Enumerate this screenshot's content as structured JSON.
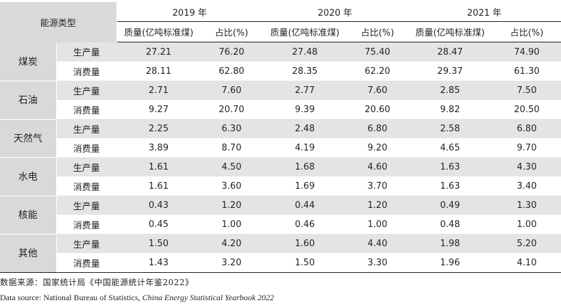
{
  "header": {
    "type_label": "能源类型",
    "years": [
      "2019 年",
      "2020 年",
      "2021 年"
    ],
    "quantity_label": "质量(亿吨标准煤)",
    "share_label": "占比(%)"
  },
  "rows": [
    {
      "type": "煤炭",
      "measures": [
        {
          "label": "生产量",
          "values": [
            "27.21",
            "76.20",
            "27.48",
            "75.40",
            "28.47",
            "74.90"
          ]
        },
        {
          "label": "消费量",
          "values": [
            "28.11",
            "62.80",
            "28.35",
            "62.20",
            "29.37",
            "61.30"
          ]
        }
      ]
    },
    {
      "type": "石油",
      "measures": [
        {
          "label": "生产量",
          "values": [
            "2.71",
            "7.60",
            "2.77",
            "7.60",
            "2.85",
            "7.50"
          ]
        },
        {
          "label": "消费量",
          "values": [
            "9.27",
            "20.70",
            "9.39",
            "20.60",
            "9.82",
            "20.50"
          ]
        }
      ]
    },
    {
      "type": "天然气",
      "measures": [
        {
          "label": "生产量",
          "values": [
            "2.25",
            "6.30",
            "2.48",
            "6.80",
            "2.58",
            "6.80"
          ]
        },
        {
          "label": "消费量",
          "values": [
            "3.89",
            "8.70",
            "4.19",
            "9.20",
            "4.65",
            "9.70"
          ]
        }
      ]
    },
    {
      "type": "水电",
      "measures": [
        {
          "label": "生产量",
          "values": [
            "1.61",
            "4.50",
            "1.68",
            "4.60",
            "1.63",
            "4.30"
          ]
        },
        {
          "label": "消费量",
          "values": [
            "1.61",
            "3.60",
            "1.69",
            "3.70",
            "1.63",
            "3.40"
          ]
        }
      ]
    },
    {
      "type": "核能",
      "measures": [
        {
          "label": "生产量",
          "values": [
            "0.43",
            "1.20",
            "0.44",
            "1.20",
            "0.49",
            "1.30"
          ]
        },
        {
          "label": "消费量",
          "values": [
            "0.45",
            "1.00",
            "0.46",
            "1.00",
            "0.48",
            "1.00"
          ]
        }
      ]
    },
    {
      "type": "其他",
      "measures": [
        {
          "label": "生产量",
          "values": [
            "1.50",
            "4.20",
            "1.60",
            "4.40",
            "1.98",
            "5.20"
          ]
        },
        {
          "label": "消费量",
          "values": [
            "1.43",
            "3.20",
            "1.50",
            "3.30",
            "1.96",
            "4.10"
          ]
        }
      ]
    }
  ],
  "source": {
    "cn": "数据来源：国家统计局《中国能源统计年鉴2022》",
    "en_prefix": "Data source: National Bureau of Statistics, ",
    "en_title": "China Energy Statistical Yearbook 2022"
  },
  "colors": {
    "header_fill": "#d9d9da",
    "row_shade": "#e4e4e5",
    "rule": "#1a1a1a"
  }
}
